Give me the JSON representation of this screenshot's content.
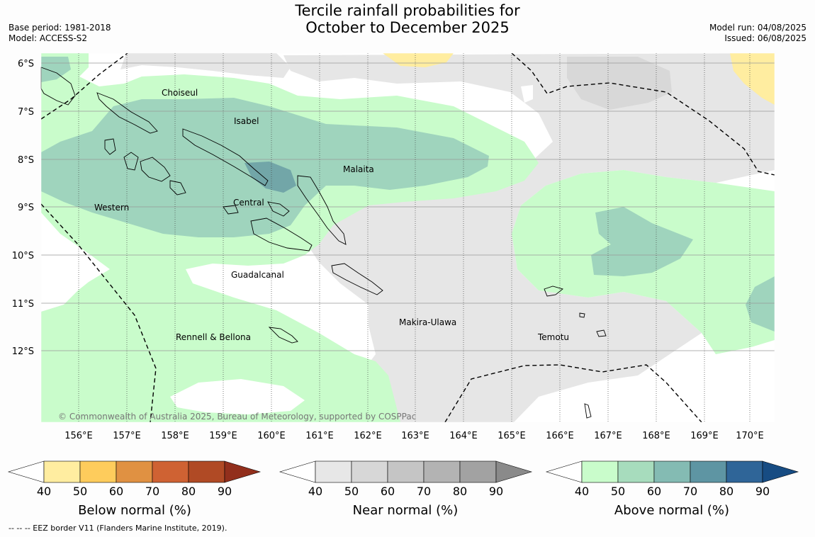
{
  "title_lines": [
    "Tercile rainfall probabilities for",
    "October to December 2025"
  ],
  "meta_left": [
    "Base period: 1981-2018",
    "Model: ACCESS-S2"
  ],
  "meta_right": [
    "Model run: 04/08/2025",
    "Issued: 06/08/2025"
  ],
  "lat_ticks": [
    "6°S",
    "7°S",
    "8°S",
    "9°S",
    "10°S",
    "11°S",
    "12°S"
  ],
  "lon_ticks": [
    "156°E",
    "157°E",
    "158°E",
    "159°E",
    "160°E",
    "161°E",
    "162°E",
    "163°E",
    "164°E",
    "165°E",
    "166°E",
    "167°E",
    "168°E",
    "169°E",
    "170°E"
  ],
  "regions": [
    "Choiseul",
    "Isabel",
    "Malaita",
    "Western",
    "Central",
    "Guadalcanal",
    "Makira-Ulawa",
    "Rennell & Bellona",
    "Temotu"
  ],
  "copyright": "© Commonwealth of Australia 2025, Bureau of Meteorology, supported by COSPPac",
  "colorbars": [
    {
      "title": "Below normal (%)",
      "ticks": [
        "40",
        "50",
        "60",
        "70",
        "80",
        "90"
      ],
      "colors": [
        "#ffeda0",
        "#fecc5c",
        "#e09142",
        "#cf6233",
        "#b04a25",
        "#922f1c"
      ]
    },
    {
      "title": "Near normal (%)",
      "ticks": [
        "40",
        "50",
        "60",
        "70",
        "80",
        "90"
      ],
      "colors": [
        "#e7e7e7",
        "#d7d7d7",
        "#c5c5c5",
        "#b3b3b3",
        "#a2a2a2",
        "#8a8a8a"
      ]
    },
    {
      "title": "Above normal (%)",
      "ticks": [
        "40",
        "50",
        "60",
        "70",
        "80",
        "90"
      ],
      "colors": [
        "#c9fccb",
        "#a7dcbd",
        "#84bbb3",
        "#5e95a3",
        "#2f6598",
        "#174c83"
      ]
    }
  ],
  "footnote": "--  --  -- EEZ border V11 (Flanders Marine Institute, 2019).",
  "colors": {
    "below_light": "#ffeda0",
    "near_light": "#e5e5e5",
    "above_light": "#c9fccb",
    "above_mid": "#9fd4bd",
    "above_dark": "#72a6a8"
  }
}
